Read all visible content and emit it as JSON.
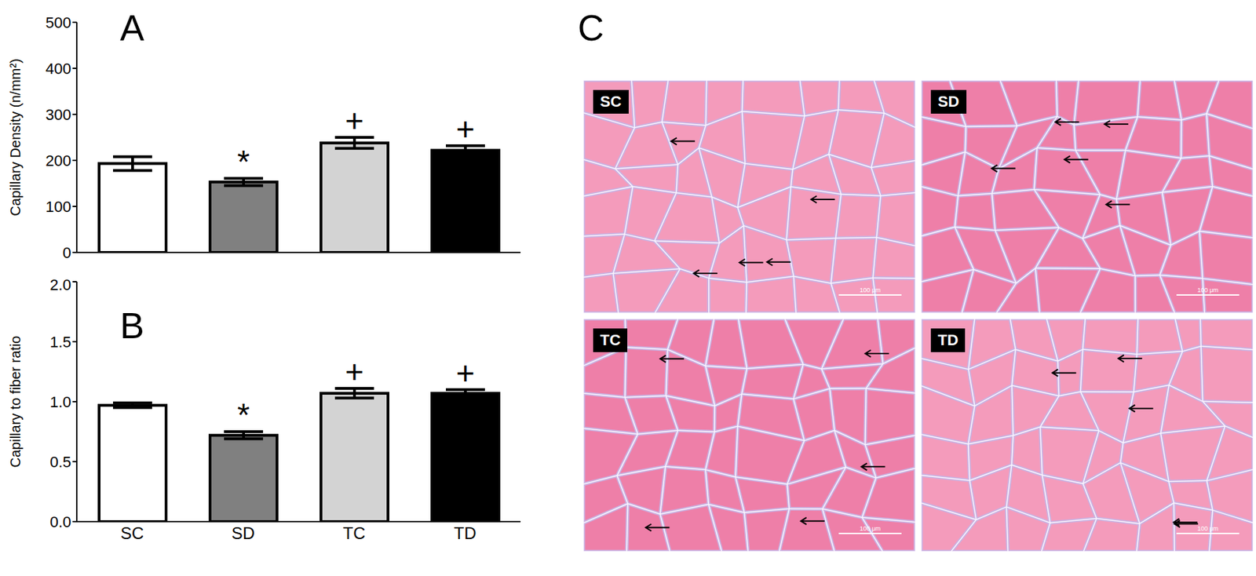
{
  "chart_data": [
    {
      "type": "bar",
      "title": "A",
      "y_label": "Capillary Density (n/mm²)",
      "categories": [
        "SC",
        "SD",
        "TC",
        "TD"
      ],
      "values": [
        193,
        153,
        238,
        222
      ],
      "errors": [
        15,
        8,
        12,
        10
      ],
      "colors": [
        "#ffffff",
        "#808080",
        "#d3d3d3",
        "#000000"
      ],
      "annotations": [
        null,
        "*",
        "+",
        "+"
      ],
      "ylim": [
        0,
        500
      ],
      "yticks": [
        0,
        100,
        200,
        300,
        400,
        500
      ],
      "tick_labels": "y"
    },
    {
      "type": "bar",
      "title": "B",
      "y_label": "Capillary to fiber ratio",
      "categories": [
        "SC",
        "SD",
        "TC",
        "TD"
      ],
      "values": [
        0.97,
        0.72,
        1.07,
        1.07
      ],
      "errors": [
        0.02,
        0.03,
        0.04,
        0.03
      ],
      "colors": [
        "#ffffff",
        "#808080",
        "#d3d3d3",
        "#000000"
      ],
      "annotations": [
        null,
        "*",
        "+",
        "+"
      ],
      "ylim": [
        0,
        2.0
      ],
      "yticks": [
        {
          "value": 0,
          "label": "0.0"
        },
        0.5,
        {
          "value": 1,
          "label": "1.0"
        },
        1.5,
        {
          "value": 2,
          "label": "2.0"
        }
      ]
    }
  ],
  "images": {
    "title": "C",
    "panels": [
      {
        "label": "SC",
        "scale_bar": "100 μm"
      },
      {
        "label": "SD",
        "scale_bar": "100 μm"
      },
      {
        "label": "TC",
        "scale_bar": "100 μm"
      },
      {
        "label": "TD",
        "scale_bar": "100 μm"
      }
    ]
  }
}
